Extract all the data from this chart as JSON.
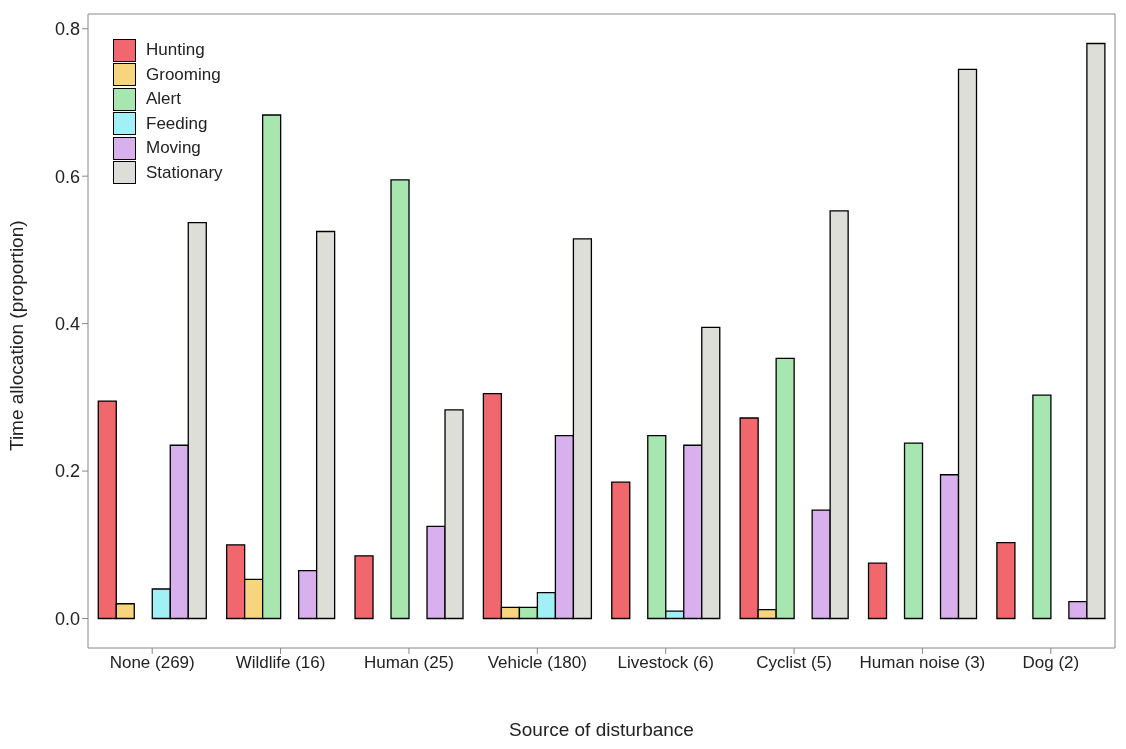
{
  "chart_data": {
    "type": "bar",
    "xlabel": "Source of disturbance",
    "ylabel": "Time allocation (proportion)",
    "categories": [
      "None (269)",
      "Wildlife (16)",
      "Human (25)",
      "Vehicle (180)",
      "Livestock (6)",
      "Cyclist (5)",
      "Human noise (3)",
      "Dog (2)"
    ],
    "series": [
      {
        "name": "Hunting",
        "color": "#f0686e",
        "values": [
          0.295,
          0.1,
          0.085,
          0.305,
          0.185,
          0.272,
          0.075,
          0.103
        ]
      },
      {
        "name": "Grooming",
        "color": "#f7d57f",
        "values": [
          0.02,
          0.053,
          0,
          0.015,
          0,
          0.012,
          0,
          0
        ]
      },
      {
        "name": "Alert",
        "color": "#a8e6b0",
        "values": [
          0,
          0.683,
          0.595,
          0.015,
          0.248,
          0.353,
          0.238,
          0.303
        ]
      },
      {
        "name": "Feeding",
        "color": "#a0f0f5",
        "values": [
          0.04,
          0,
          0,
          0.035,
          0.01,
          0,
          0,
          0
        ]
      },
      {
        "name": "Moving",
        "color": "#d8b0ee",
        "values": [
          0.235,
          0.065,
          0.125,
          0.248,
          0.235,
          0.147,
          0.195,
          0.023
        ]
      },
      {
        "name": "Stationary",
        "color": "#deded9",
        "values": [
          0.537,
          0.525,
          0.283,
          0.515,
          0.395,
          0.553,
          0.745,
          0.78
        ]
      }
    ],
    "ylim": [
      -0.04,
      0.82
    ],
    "yticks": [
      {
        "value": 0,
        "label": "0.0"
      },
      {
        "value": 0.2,
        "label": "0.2"
      },
      {
        "value": 0.4,
        "label": "0.4"
      },
      {
        "value": 0.6,
        "label": "0.6"
      },
      {
        "value": 0.8,
        "label": "0.8"
      }
    ],
    "grid": false,
    "legend": "top left"
  }
}
